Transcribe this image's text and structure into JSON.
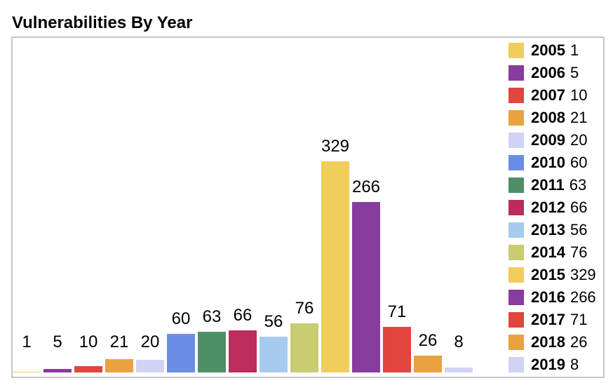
{
  "title": "Vulnerabilities By Year",
  "chart_data": {
    "type": "bar",
    "title": "Vulnerabilities By Year",
    "categories": [
      "2005",
      "2006",
      "2007",
      "2008",
      "2009",
      "2010",
      "2011",
      "2012",
      "2013",
      "2014",
      "2015",
      "2016",
      "2017",
      "2018",
      "2019"
    ],
    "values": [
      1,
      5,
      10,
      21,
      20,
      60,
      63,
      66,
      56,
      76,
      329,
      266,
      71,
      26,
      8
    ],
    "bar_colors": [
      "#f1cd5c",
      "#883c9e",
      "#e0463d",
      "#eaa23e",
      "#cfd3f4",
      "#6b8de4",
      "#4e9066",
      "#ba2d5d",
      "#a6cbee",
      "#c9cc70",
      "#f1cd5c",
      "#883c9e",
      "#e0463d",
      "#eaa23e",
      "#cfd3f4"
    ],
    "xlabel": "",
    "ylabel": "",
    "ylim": [
      0,
      360
    ],
    "grid": false,
    "legend_position": "right",
    "value_labels": true
  },
  "colors": {
    "background": "#ffffff",
    "border": "#c6c6c6",
    "text": "#000000"
  }
}
